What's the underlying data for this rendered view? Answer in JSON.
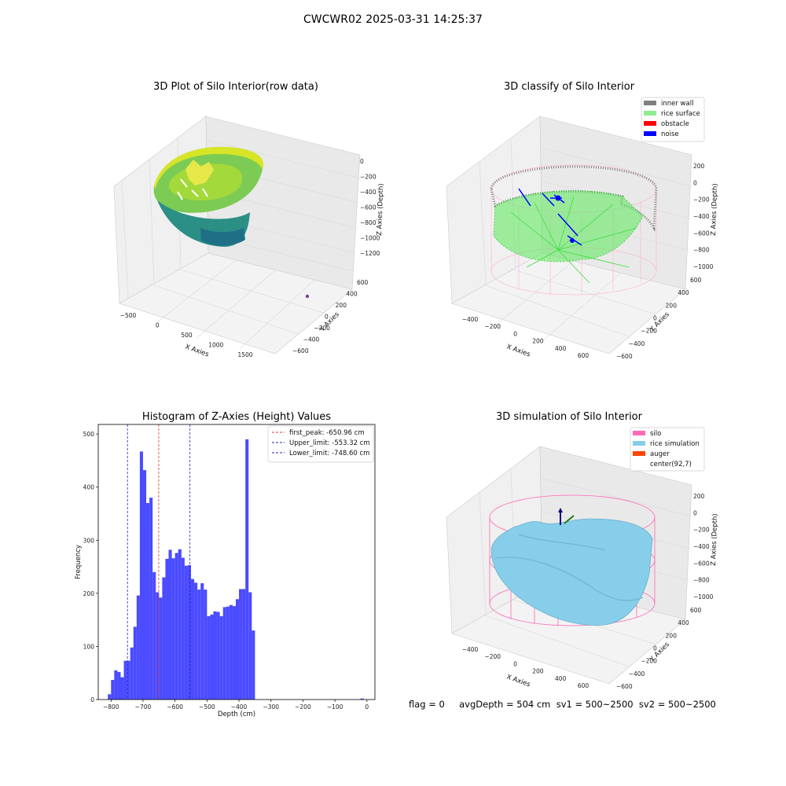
{
  "suptitle": "CWCWR02 2025-03-31 14:25:37",
  "status_line": "flag = 0     avgDepth = 504 cm  sv1 = 500~2500  sv2 = 500~2500",
  "panels": {
    "raw": {
      "title": "3D Plot of Silo Interior(row data)",
      "xlabel": "X Axies",
      "ylabel": "Y Axies",
      "zlabel": "Z Axies (Depth)",
      "xticks": [
        "−500",
        "0",
        "500",
        "1000",
        "1500"
      ],
      "yticks": [
        "−600",
        "−400",
        "−200",
        "0",
        "200",
        "400",
        "600"
      ],
      "zticks": [
        "0",
        "−200",
        "−400",
        "−600",
        "−800",
        "−1000",
        "−1200"
      ]
    },
    "classify": {
      "title": "3D classify of Silo Interior",
      "xlabel": "X Axies",
      "ylabel": "Y Axies",
      "zlabel": "Z Axies (Depth)",
      "xticks": [
        "−400",
        "−200",
        "0",
        "200",
        "400",
        "600"
      ],
      "yticks": [
        "−600",
        "−400",
        "−200",
        "0",
        "200",
        "400",
        "600"
      ],
      "zticks": [
        "200",
        "0",
        "−200",
        "−400",
        "−600",
        "−800",
        "−1000"
      ],
      "legend": [
        {
          "label": "inner wall",
          "color": "#808080"
        },
        {
          "label": "rice surface",
          "color": "#90ee90"
        },
        {
          "label": "obstacle",
          "color": "#ff0000"
        },
        {
          "label": "noise",
          "color": "#0000ff"
        }
      ]
    },
    "simulation": {
      "title": "3D simulation of Silo Interior",
      "xlabel": "X Axies",
      "ylabel": "Y Axies",
      "zlabel": "Z Axies (Depth)",
      "xticks": [
        "−400",
        "−200",
        "0",
        "200",
        "400",
        "600"
      ],
      "yticks": [
        "−600",
        "−400",
        "−200",
        "0",
        "200",
        "400",
        "600"
      ],
      "zticks": [
        "200",
        "0",
        "−200",
        "−400",
        "−600",
        "−800",
        "−1000"
      ],
      "legend": [
        {
          "label": "silo",
          "color": "#ff69b4"
        },
        {
          "label": "rice simulation",
          "color": "#87ceeb"
        },
        {
          "label": "auger",
          "color": "#ff4500"
        },
        {
          "label": "center(92,7)",
          "color": ""
        }
      ]
    }
  },
  "chart_data": {
    "type": "bar",
    "title": "Histogram of Z-Axies (Height) Values",
    "xlabel": "Depth (cm)",
    "ylabel": "Frequency",
    "xlim": [
      -840,
      25
    ],
    "ylim": [
      0,
      518
    ],
    "bin_width": 10,
    "bin_starts": [
      -810,
      -800,
      -790,
      -780,
      -770,
      -760,
      -750,
      -740,
      -730,
      -720,
      -710,
      -700,
      -690,
      -680,
      -670,
      -660,
      -650,
      -640,
      -630,
      -620,
      -610,
      -600,
      -590,
      -580,
      -570,
      -560,
      -550,
      -540,
      -530,
      -520,
      -510,
      -500,
      -490,
      -480,
      -470,
      -460,
      -450,
      -440,
      -430,
      -420,
      -410,
      -400,
      -390,
      -380,
      -370,
      -360,
      -350,
      -340,
      -330,
      -320,
      -310,
      -300,
      -290,
      -280,
      -270,
      -260,
      -250,
      -240,
      -230,
      -220,
      -210,
      -200,
      -190,
      -180,
      -170,
      -160,
      -150,
      -140,
      -130,
      -120,
      -110,
      -100,
      -90,
      -80,
      -70,
      -60,
      -50,
      -40,
      -30,
      -20,
      -10,
      0
    ],
    "values": [
      10,
      37,
      55,
      52,
      42,
      73,
      73,
      98,
      137,
      196,
      467,
      432,
      370,
      380,
      240,
      202,
      192,
      230,
      265,
      282,
      266,
      276,
      283,
      267,
      252,
      253,
      227,
      220,
      207,
      219,
      207,
      157,
      160,
      166,
      165,
      157,
      174,
      175,
      178,
      176,
      189,
      208,
      208,
      490,
      202,
      130,
      0,
      0,
      0,
      0,
      0,
      0,
      0,
      0,
      0,
      0,
      0,
      0,
      0,
      0,
      0,
      0,
      0,
      0,
      0,
      0,
      0,
      0,
      0,
      0,
      0,
      0,
      0,
      0,
      0,
      0,
      0,
      0,
      0,
      2,
      0,
      0
    ],
    "bar_color": "#4b4bff",
    "xticks": [
      -800,
      -700,
      -600,
      -500,
      -400,
      -300,
      -200,
      -100,
      0
    ],
    "yticks": [
      0,
      100,
      200,
      300,
      400,
      500
    ],
    "vlines": [
      {
        "label": "first_peak: -650.96 cm",
        "x": -650.96,
        "color": "#e03030"
      },
      {
        "label": "Upper_limit: -553.32 cm",
        "x": -553.32,
        "color": "#2020c0"
      },
      {
        "label": "Lower_limit: -748.60 cm",
        "x": -748.6,
        "color": "#2020c0"
      }
    ],
    "legend_position": "top-right",
    "grid": false
  }
}
